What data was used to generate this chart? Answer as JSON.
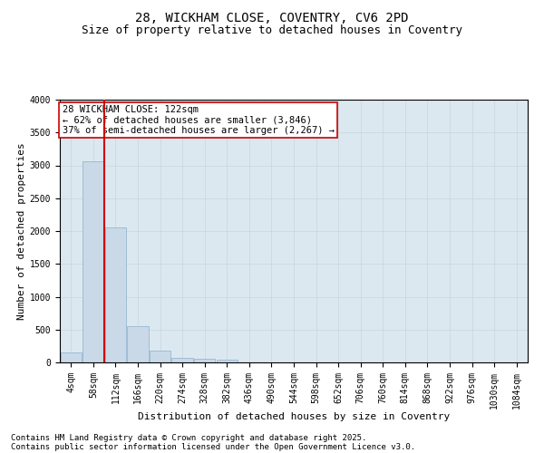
{
  "title_line1": "28, WICKHAM CLOSE, COVENTRY, CV6 2PD",
  "title_line2": "Size of property relative to detached houses in Coventry",
  "xlabel": "Distribution of detached houses by size in Coventry",
  "ylabel": "Number of detached properties",
  "categories": [
    "4sqm",
    "58sqm",
    "112sqm",
    "166sqm",
    "220sqm",
    "274sqm",
    "328sqm",
    "382sqm",
    "436sqm",
    "490sqm",
    "544sqm",
    "598sqm",
    "652sqm",
    "706sqm",
    "760sqm",
    "814sqm",
    "868sqm",
    "922sqm",
    "976sqm",
    "1030sqm",
    "1084sqm"
  ],
  "values": [
    148,
    3060,
    2060,
    548,
    175,
    75,
    55,
    40,
    5,
    0,
    0,
    0,
    0,
    0,
    0,
    0,
    0,
    0,
    0,
    0,
    0
  ],
  "bar_color": "#c9d9e8",
  "bar_edge_color": "#8ab0cc",
  "vline_color": "#cc0000",
  "vline_x_index": 2,
  "annotation_text_line1": "28 WICKHAM CLOSE: 122sqm",
  "annotation_text_line2": "← 62% of detached houses are smaller (3,846)",
  "annotation_text_line3": "37% of semi-detached houses are larger (2,267) →",
  "annotation_box_color": "#ffffff",
  "annotation_box_edge": "#cc0000",
  "ylim": [
    0,
    4000
  ],
  "yticks": [
    0,
    500,
    1000,
    1500,
    2000,
    2500,
    3000,
    3500,
    4000
  ],
  "grid_color": "#c8d4e0",
  "bg_color": "#dce8f0",
  "footer_line1": "Contains HM Land Registry data © Crown copyright and database right 2025.",
  "footer_line2": "Contains public sector information licensed under the Open Government Licence v3.0.",
  "title_fontsize": 10,
  "subtitle_fontsize": 9,
  "axis_label_fontsize": 8,
  "tick_fontsize": 7,
  "annotation_fontsize": 7.5,
  "footer_fontsize": 6.5
}
